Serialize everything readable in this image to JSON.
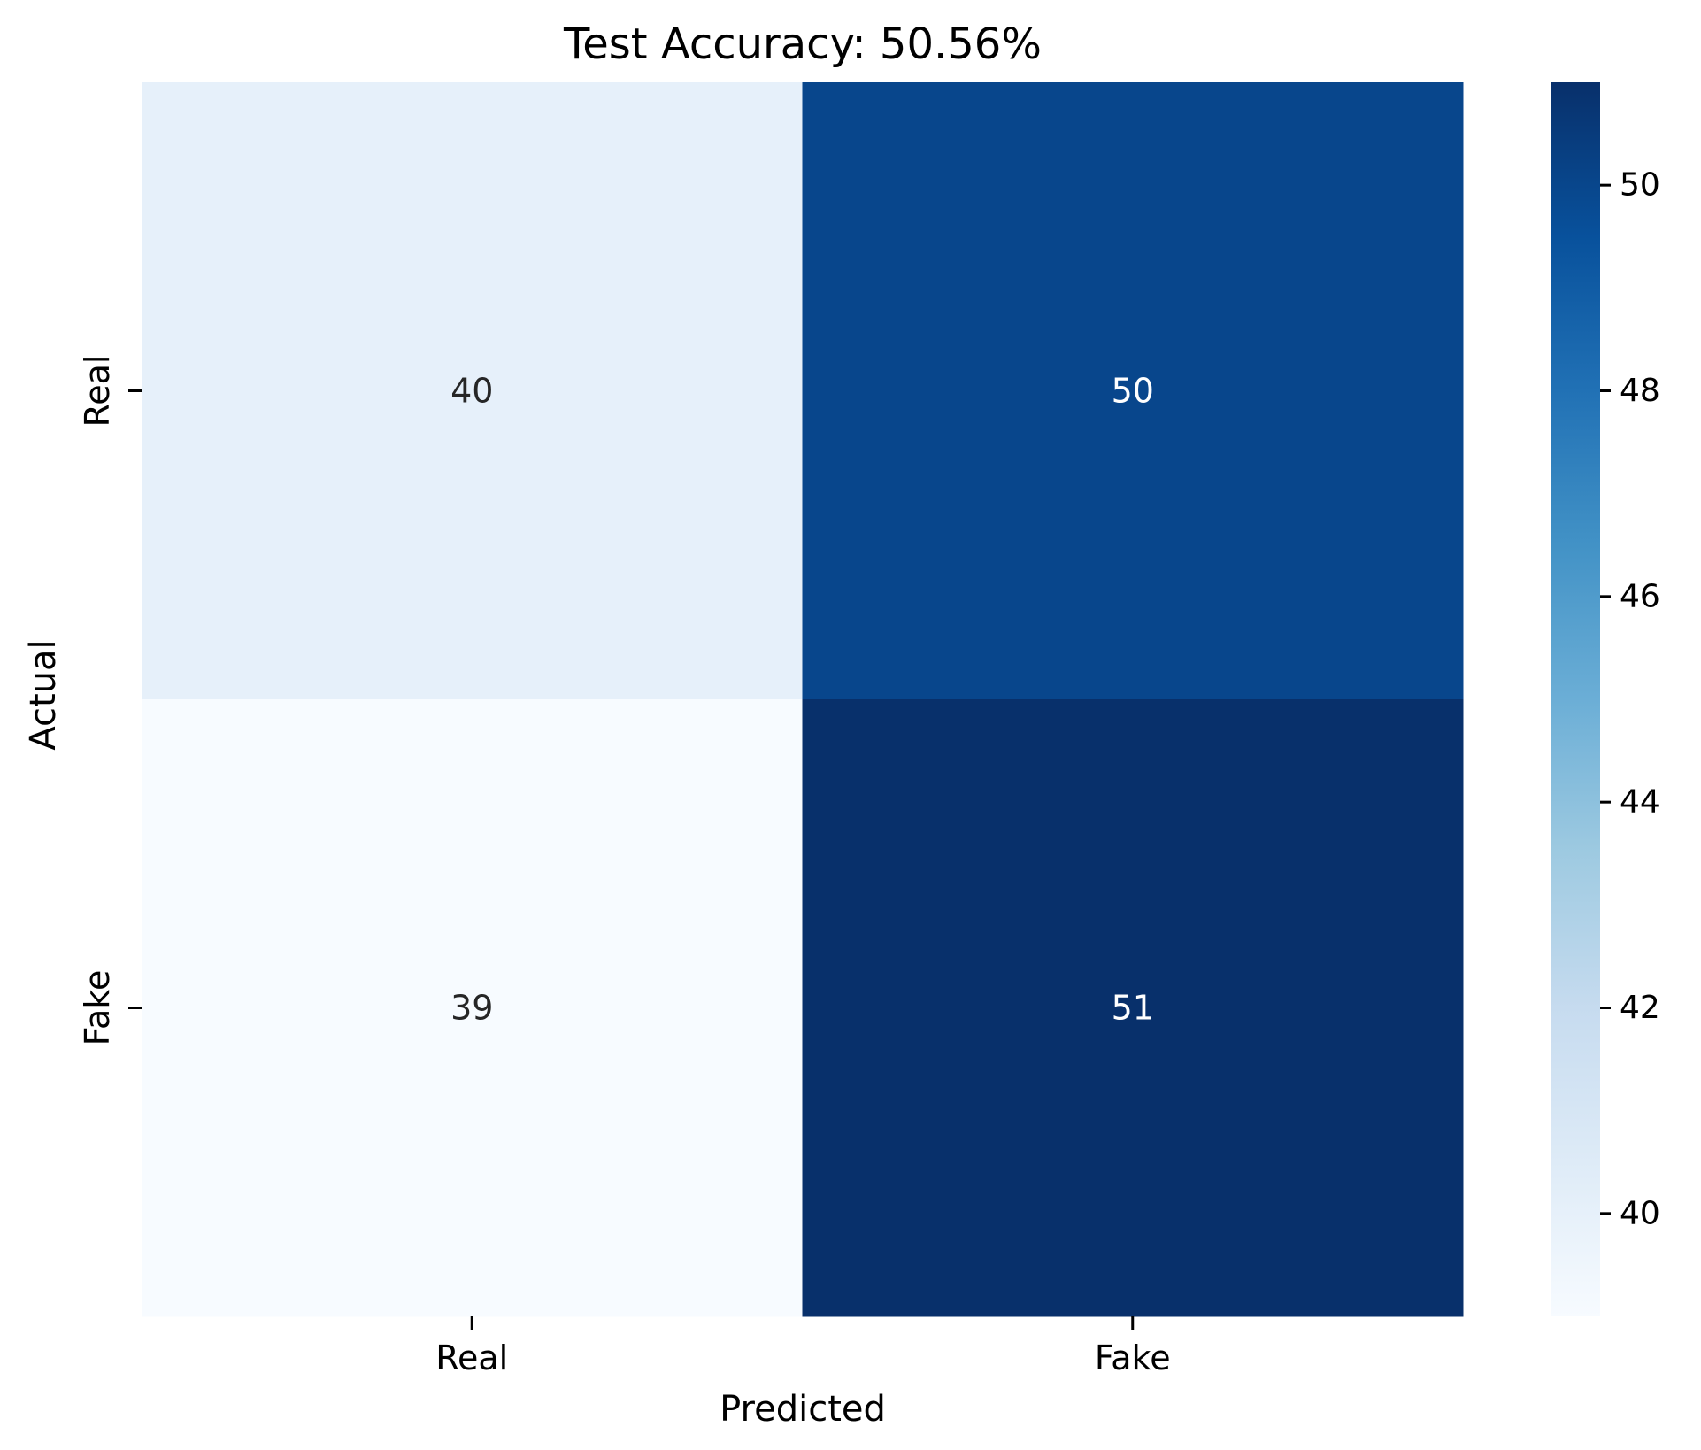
{
  "chart_data": {
    "type": "heatmap",
    "title": "Test Accuracy: 50.56%",
    "xlabel": "Predicted",
    "ylabel": "Actual",
    "x_categories": [
      "Real",
      "Fake"
    ],
    "y_categories": [
      "Real",
      "Fake"
    ],
    "values": [
      [
        40,
        50
      ],
      [
        39,
        51
      ]
    ],
    "annotations": [
      [
        "40",
        "50"
      ],
      [
        "39",
        "51"
      ]
    ],
    "colormap": "Blues",
    "colorbar": {
      "range": [
        39,
        51
      ],
      "ticks": [
        40,
        42,
        44,
        46,
        48,
        50
      ],
      "tick_labels": [
        "40",
        "42",
        "44",
        "46",
        "48",
        "50"
      ]
    },
    "grid": false
  }
}
